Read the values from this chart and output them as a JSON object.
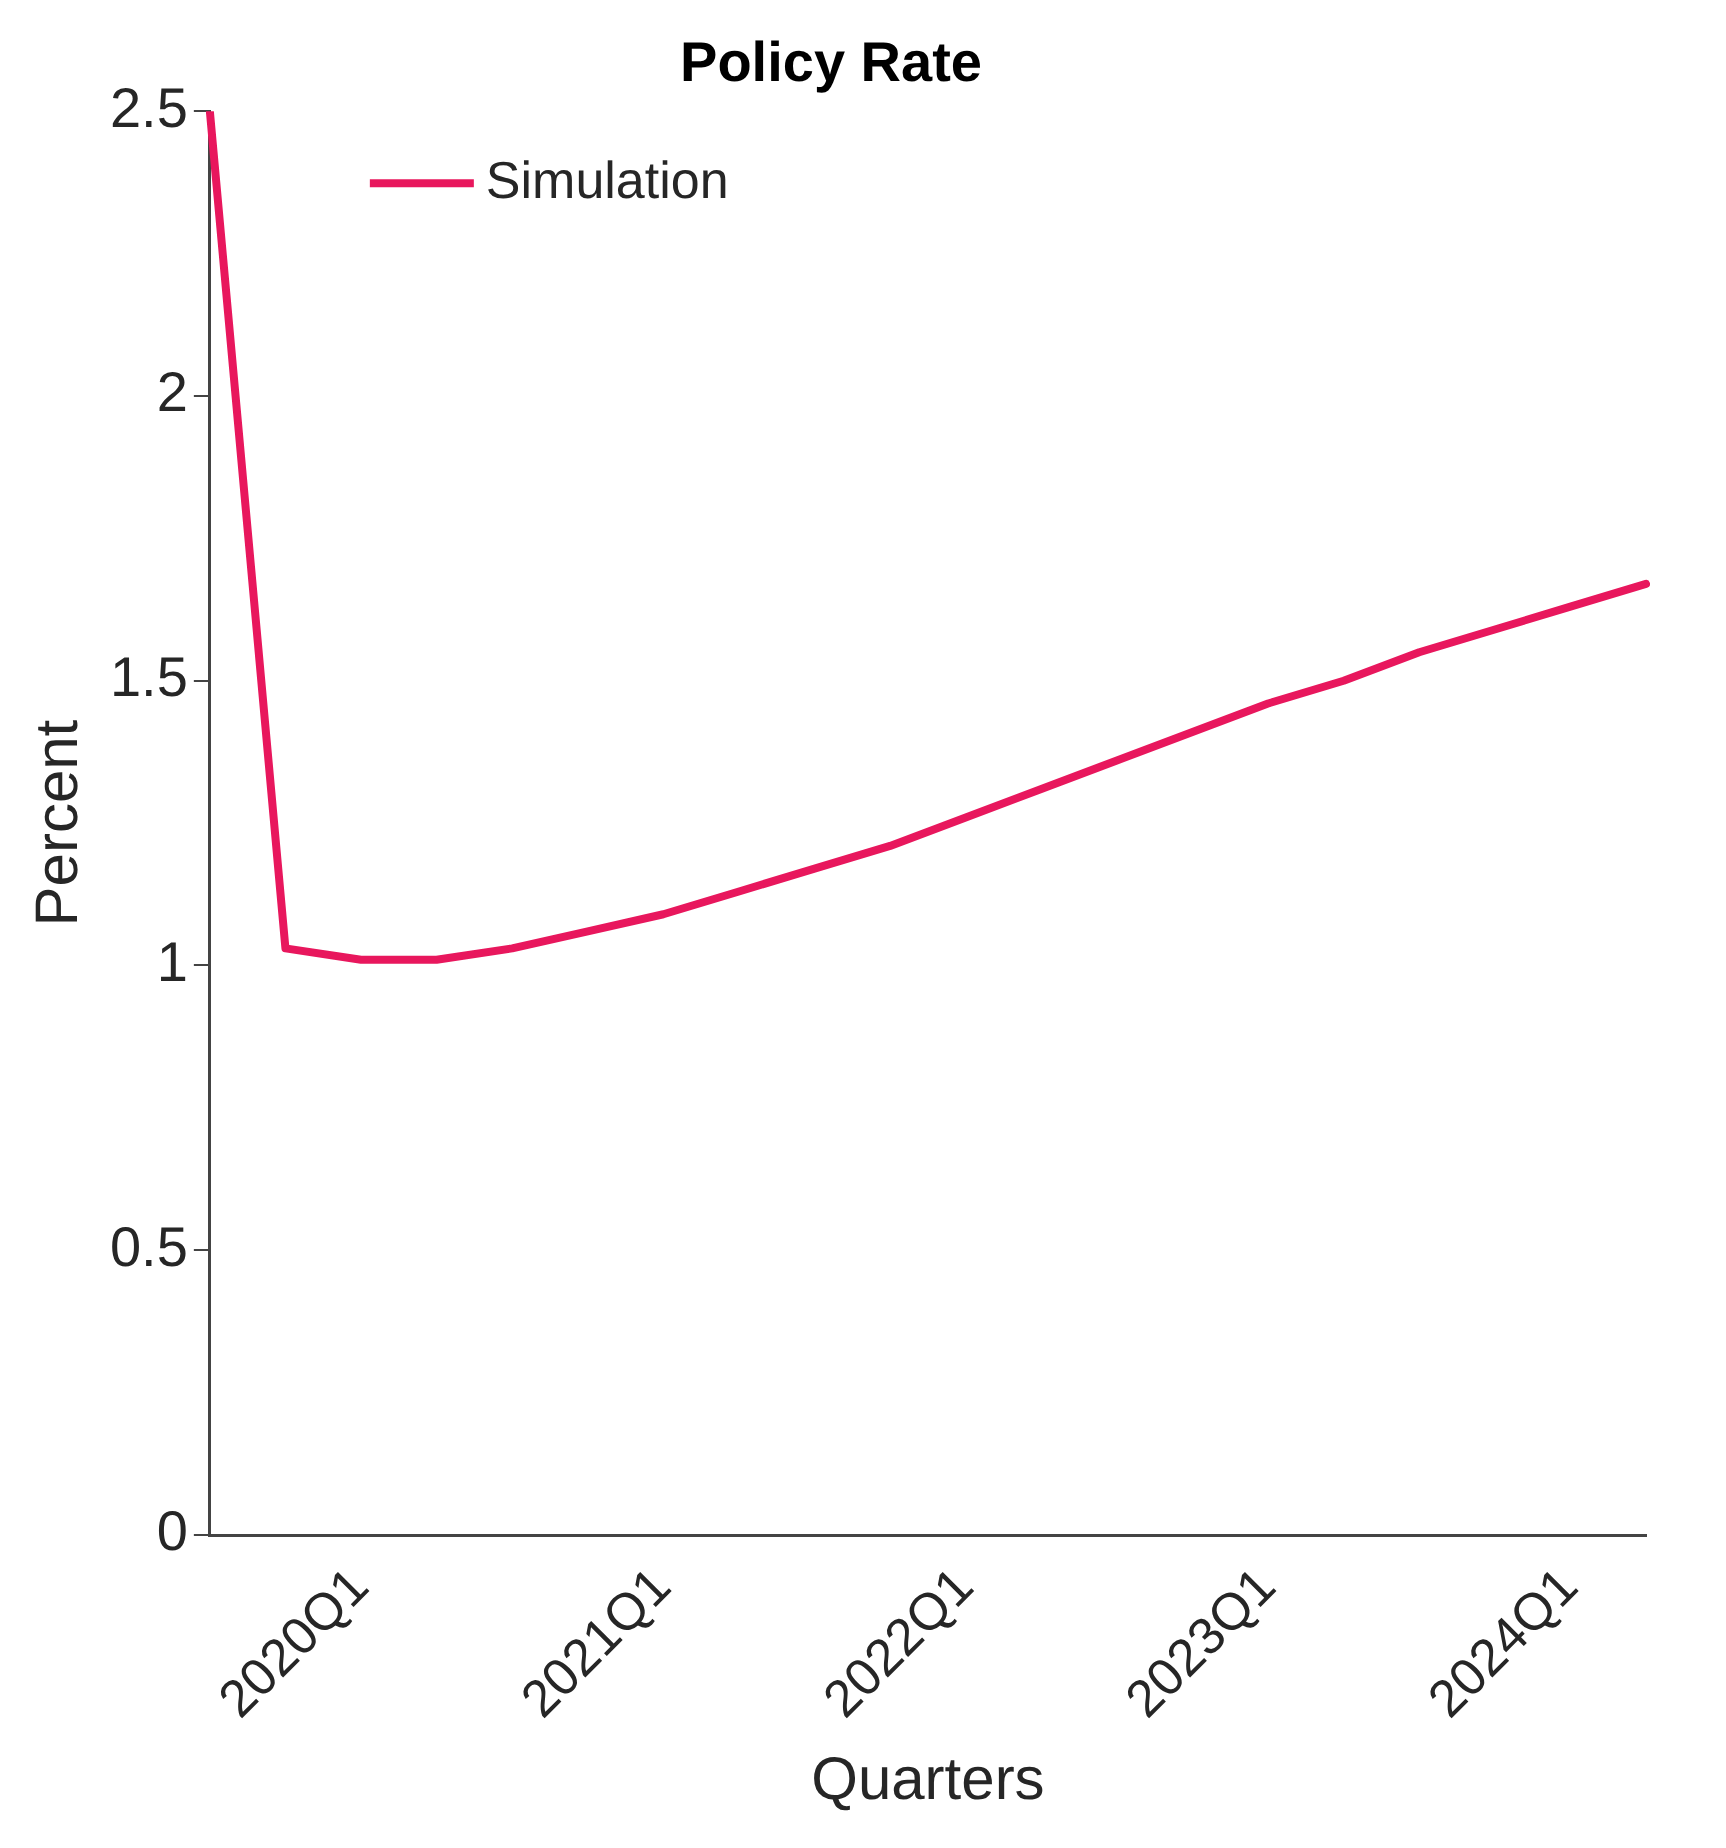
{
  "chart_data": {
    "type": "line",
    "title": "Policy Rate",
    "xlabel": "Quarters",
    "ylabel": "Percent",
    "categories": [
      null,
      null,
      "2020Q1",
      null,
      null,
      null,
      "2021Q1",
      null,
      null,
      null,
      "2022Q1",
      null,
      null,
      null,
      "2023Q1",
      null,
      null,
      null,
      "2024Q1",
      null
    ],
    "series": [
      {
        "name": "Simulation",
        "color": "#e8175d",
        "values": [
          2.5,
          1.03,
          1.01,
          1.01,
          1.03,
          1.06,
          1.09,
          1.13,
          1.17,
          1.21,
          1.26,
          1.31,
          1.36,
          1.41,
          1.46,
          1.5,
          1.55,
          1.59,
          1.63,
          1.67
        ]
      }
    ],
    "ylim": [
      0,
      2.5
    ],
    "yticks": [
      0,
      0.5,
      1,
      1.5,
      2,
      2.5
    ],
    "grid": false,
    "legend": "top left",
    "marker": "none",
    "line_style": "solid"
  }
}
